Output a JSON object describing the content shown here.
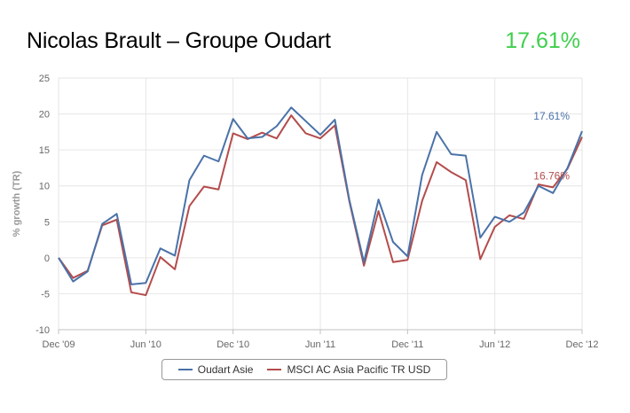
{
  "header": {
    "title": "Nicolas Brault – Groupe Oudart",
    "headline_value": "17.61%",
    "headline_color": "#3fcf4c"
  },
  "chart_data": {
    "type": "line",
    "ylabel": "% growth (TR)",
    "xlabel": "",
    "ylim": [
      -10,
      25
    ],
    "yticks": [
      -10,
      -5,
      0,
      5,
      10,
      15,
      20,
      25
    ],
    "xlim": [
      "2009-12",
      "2012-12"
    ],
    "xticks": [
      {
        "x": "2009-12",
        "label": "Dec '09"
      },
      {
        "x": "2010-06",
        "label": "Jun '10"
      },
      {
        "x": "2010-12",
        "label": "Dec '10"
      },
      {
        "x": "2011-06",
        "label": "Jun '11"
      },
      {
        "x": "2011-12",
        "label": "Dec '11"
      },
      {
        "x": "2012-06",
        "label": "Jun '12"
      },
      {
        "x": "2012-12",
        "label": "Dec '12"
      }
    ],
    "grid": true,
    "legend_position": "bottom-center",
    "x": [
      "2009-12",
      "2010-01",
      "2010-02",
      "2010-03",
      "2010-04",
      "2010-05",
      "2010-06",
      "2010-07",
      "2010-08",
      "2010-09",
      "2010-10",
      "2010-11",
      "2010-12",
      "2011-01",
      "2011-02",
      "2011-03",
      "2011-04",
      "2011-05",
      "2011-06",
      "2011-07",
      "2011-08",
      "2011-09",
      "2011-10",
      "2011-11",
      "2011-12",
      "2012-01",
      "2012-02",
      "2012-03",
      "2012-04",
      "2012-05",
      "2012-06",
      "2012-07",
      "2012-08",
      "2012-09",
      "2012-10",
      "2012-11",
      "2012-12"
    ],
    "series": [
      {
        "name": "Oudart Asie",
        "color": "#4a72a8",
        "end_label": "17.61%",
        "values": [
          0,
          -3.3,
          -1.9,
          4.7,
          6.1,
          -3.7,
          -3.5,
          1.3,
          0.3,
          10.8,
          14.2,
          13.4,
          19.3,
          16.6,
          16.8,
          18.3,
          20.9,
          19.0,
          17.1,
          19.2,
          8.0,
          -0.6,
          8.1,
          2.2,
          0.2,
          11.5,
          17.5,
          14.4,
          14.2,
          2.8,
          5.7,
          5.0,
          6.3,
          10.0,
          9.0,
          12.5,
          17.6
        ]
      },
      {
        "name": "MSCI AC Asia Pacific TR USD",
        "color": "#b44c4c",
        "end_label": "16.76%",
        "values": [
          0,
          -2.8,
          -1.8,
          4.5,
          5.3,
          -4.8,
          -5.2,
          0.1,
          -1.6,
          7.2,
          9.9,
          9.5,
          17.3,
          16.5,
          17.4,
          16.6,
          19.8,
          17.3,
          16.6,
          18.4,
          7.8,
          -1.1,
          6.5,
          -0.6,
          -0.3,
          7.9,
          13.3,
          11.9,
          10.8,
          -0.2,
          4.3,
          5.9,
          5.4,
          10.2,
          9.8,
          12.4,
          16.8
        ]
      }
    ]
  }
}
